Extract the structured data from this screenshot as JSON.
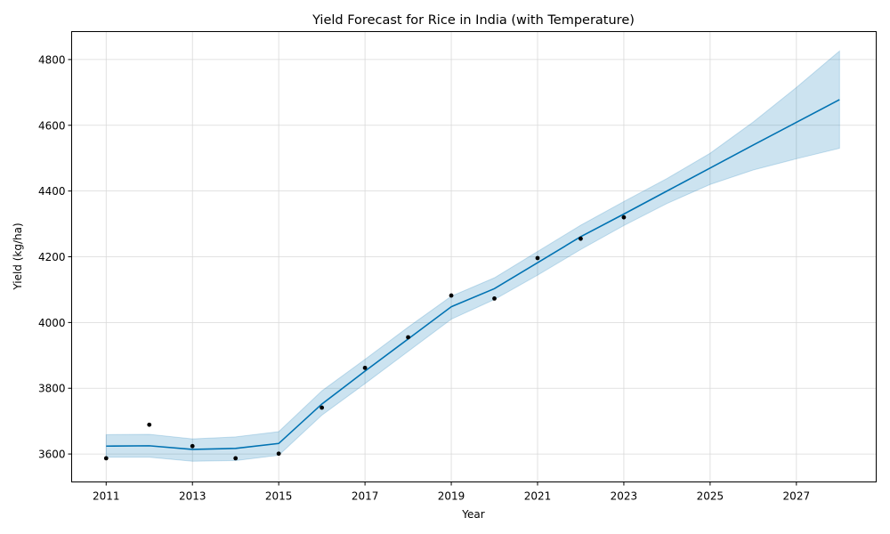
{
  "chart_data": {
    "type": "line",
    "title": "Yield Forecast for Rice in India (with Temperature)",
    "xlabel": "Year",
    "ylabel": "Yield (kg/ha)",
    "xlim": [
      2010.2,
      2028.85
    ],
    "ylim": [
      3515,
      4885
    ],
    "x_ticks": [
      2011,
      2013,
      2015,
      2017,
      2019,
      2021,
      2023,
      2025,
      2027
    ],
    "y_ticks": [
      3600,
      3800,
      4000,
      4200,
      4400,
      4600,
      4800
    ],
    "grid": true,
    "colors": {
      "forecast_line": "#0072b2",
      "interval_fill": "#0072b2",
      "observed_points": "#000000"
    },
    "forecast": {
      "x": [
        2011,
        2012,
        2013,
        2014,
        2015,
        2016,
        2017,
        2018,
        2019,
        2020,
        2021,
        2022,
        2023,
        2024,
        2025,
        2026,
        2027,
        2028
      ],
      "yhat": [
        3624,
        3625,
        3614,
        3617,
        3632,
        3752,
        3852,
        3950,
        4048,
        4103,
        4182,
        4261,
        4330,
        4400,
        4470,
        4540,
        4609,
        4678
      ],
      "lower": [
        3590,
        3590,
        3578,
        3580,
        3596,
        3718,
        3814,
        3912,
        4010,
        4070,
        4144,
        4222,
        4295,
        4362,
        4420,
        4464,
        4498,
        4530
      ],
      "upper": [
        3659,
        3660,
        3646,
        3652,
        3668,
        3792,
        3888,
        3986,
        4080,
        4136,
        4216,
        4296,
        4368,
        4438,
        4515,
        4610,
        4715,
        4826
      ]
    },
    "observed": {
      "x": [
        2011,
        2012,
        2013,
        2014,
        2015,
        2016,
        2017,
        2018,
        2019,
        2020,
        2021,
        2022,
        2023
      ],
      "y": [
        3587,
        3689,
        3624,
        3587,
        3601,
        3741,
        3862,
        3955,
        4082,
        4073,
        4196,
        4255,
        4320
      ]
    }
  }
}
